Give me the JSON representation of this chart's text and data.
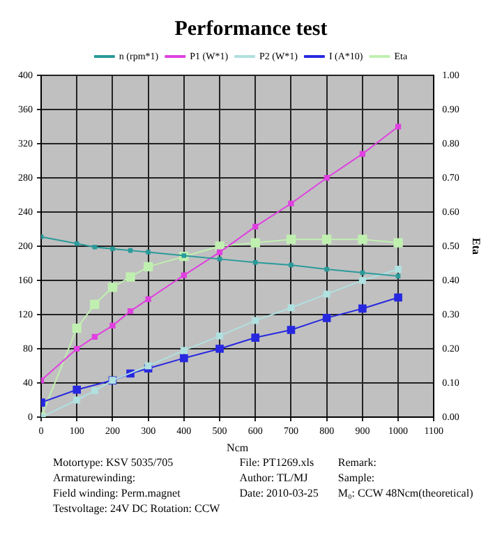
{
  "chart_data": {
    "type": "line",
    "title": "Performance test",
    "xlabel": "Ncm",
    "y2label": "Eta",
    "xlim": [
      0,
      1100
    ],
    "xticks": [
      0,
      100,
      200,
      300,
      400,
      500,
      600,
      700,
      800,
      900,
      1000,
      1100
    ],
    "ylim": [
      0,
      400
    ],
    "yticks": [
      0,
      40,
      80,
      120,
      160,
      200,
      240,
      280,
      320,
      360,
      400
    ],
    "y2lim": [
      0,
      1
    ],
    "y2ticks": [
      {
        "value": 0,
        "label": "0.00"
      },
      {
        "value": 0.1,
        "label": "0.10"
      },
      {
        "value": 0.2,
        "label": "0.20"
      },
      {
        "value": 0.3,
        "label": "0.30"
      },
      {
        "value": 0.4,
        "label": "0.40"
      },
      {
        "value": 0.5,
        "label": "0.50"
      },
      {
        "value": 0.6,
        "label": "0.60"
      },
      {
        "value": 0.7,
        "label": "0.70"
      },
      {
        "value": 0.8,
        "label": "0.80"
      },
      {
        "value": 0.9,
        "label": "0.90"
      },
      {
        "value": 1,
        "label": "1.00"
      }
    ],
    "grid": true,
    "legend": "top",
    "marker": "square",
    "line_style": "solid",
    "series": [
      {
        "name": "n (rpm*1)",
        "color": "#2a9a9a",
        "x": [
          0,
          100,
          150,
          200,
          250,
          300,
          400,
          500,
          600,
          700,
          800,
          900,
          1000
        ],
        "values": [
          211,
          203,
          199,
          197,
          195,
          193,
          189,
          185,
          181,
          178,
          173,
          169,
          165
        ]
      },
      {
        "name": "P1 (W*1)",
        "color": "#e040e0",
        "x": [
          0,
          100,
          150,
          200,
          250,
          300,
          400,
          500,
          600,
          700,
          800,
          900,
          1000
        ],
        "values": [
          43,
          80,
          94,
          107,
          124,
          138,
          166,
          193,
          223,
          250,
          280,
          308,
          340
        ]
      },
      {
        "name": "P2 (W*1)",
        "color": "#b0e0e0",
        "x": [
          0,
          100,
          150,
          200,
          300,
          400,
          500,
          600,
          700,
          800,
          900,
          1000
        ],
        "values": [
          0,
          20,
          31,
          43,
          60,
          78,
          95,
          113,
          128,
          144,
          160,
          173
        ]
      },
      {
        "name": "I (A*10)",
        "color": "#2828e0",
        "x": [
          0,
          100,
          200,
          250,
          300,
          400,
          500,
          600,
          700,
          800,
          900,
          1000
        ],
        "values": [
          17,
          32,
          43,
          51,
          57,
          69,
          80,
          93,
          102,
          116,
          127,
          140
        ]
      },
      {
        "name": "Eta",
        "color": "#c0f0b0",
        "axis": "y2",
        "x": [
          0,
          100,
          150,
          200,
          250,
          300,
          400,
          500,
          600,
          700,
          800,
          900,
          1000
        ],
        "values": [
          0,
          0.26,
          0.33,
          0.38,
          0.41,
          0.44,
          0.47,
          0.5,
          0.51,
          0.52,
          0.52,
          0.52,
          0.51
        ]
      }
    ],
    "annotations": [
      "Motortype: KSV 5035/705",
      "Armaturewinding:",
      "Field winding: Perm.magnet",
      "Testvoltage: 24V DC Rotation: CCW",
      "File: PT1269.xls",
      "Author: TL/MJ",
      "Date: 2010-03-25",
      "Remark:",
      "Sample:",
      "M₀: CCW 48Ncm(theoretical)"
    ]
  }
}
